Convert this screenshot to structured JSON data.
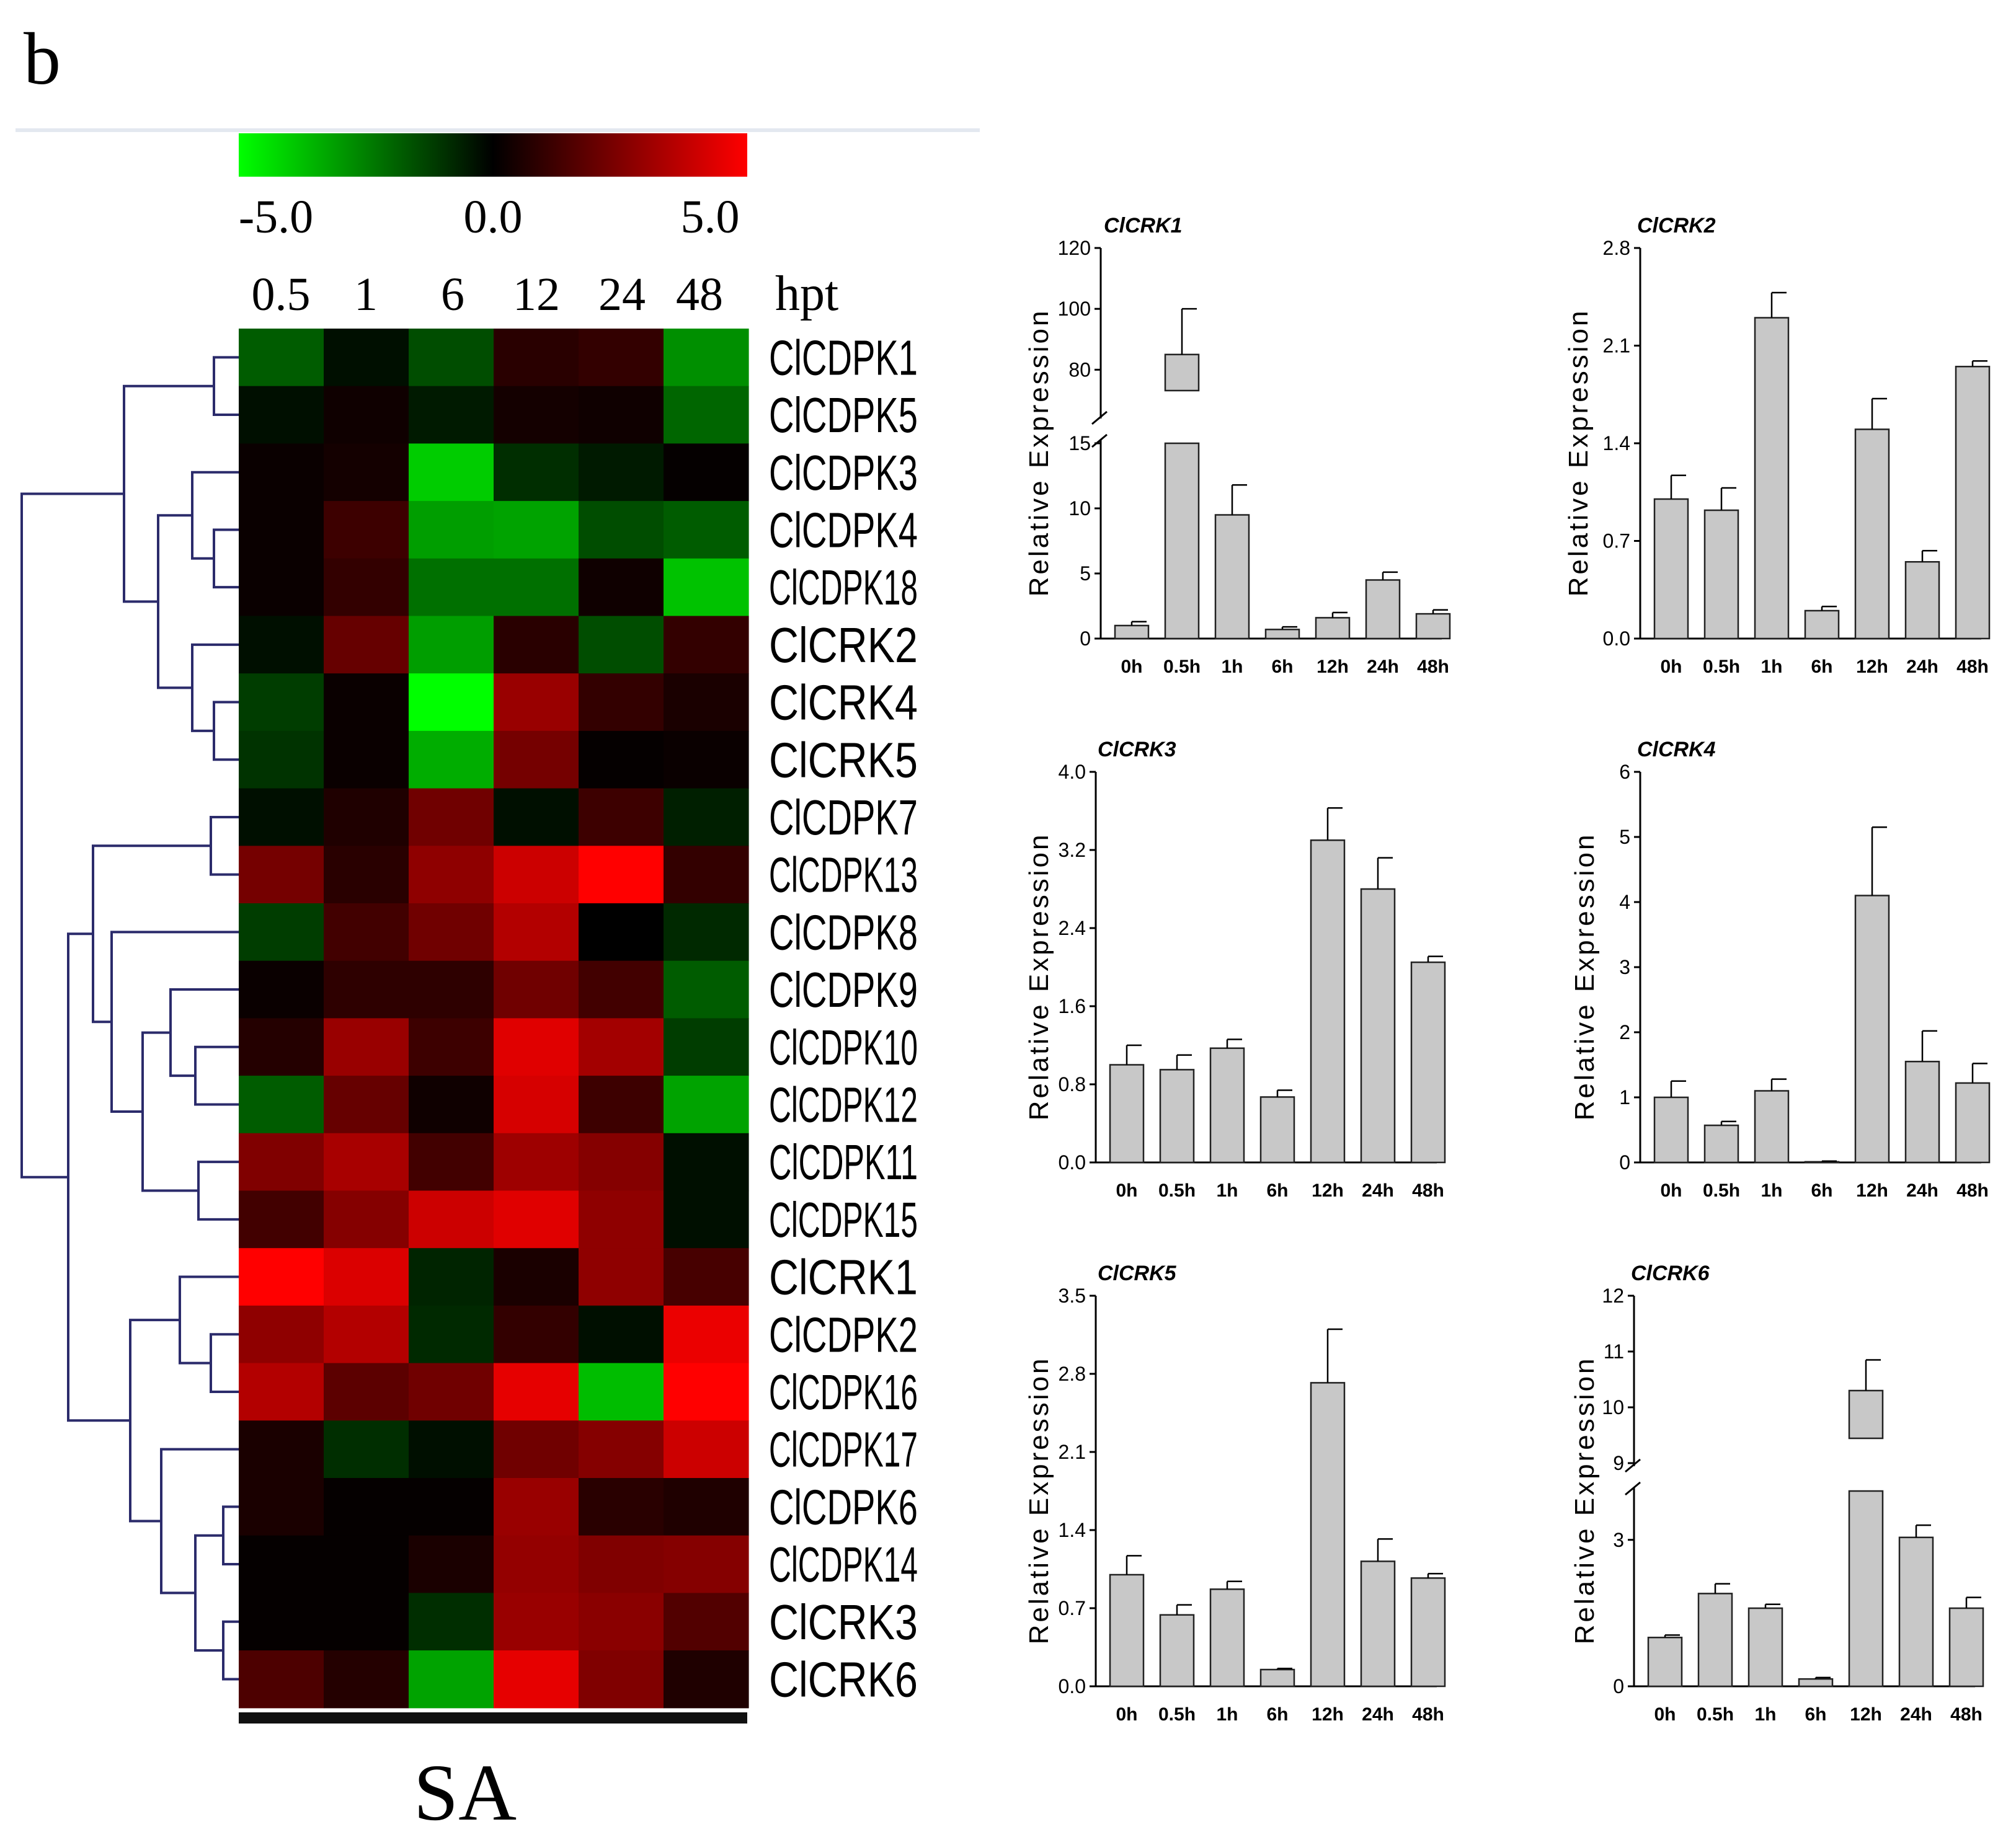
{
  "panel_label": "b",
  "colors": {
    "low": "#00ff00",
    "mid": "#000000",
    "high": "#ff0000",
    "bar_fill": "#c8c8c8",
    "bar_stroke": "#222222",
    "dendrogram": "#2b2b6b"
  },
  "heatmap": {
    "scale_labels": [
      "-5.0",
      "0.0",
      "5.0"
    ],
    "time_points": [
      "0.5",
      "1",
      "6",
      "12",
      "24",
      "48"
    ],
    "time_unit": "hpt",
    "treatment": "SA"
  },
  "chart_data": [
    {
      "type": "heatmap",
      "color_range": [
        -5.0,
        5.0
      ],
      "x": [
        "0.5",
        "1",
        "6",
        "12",
        "24",
        "48"
      ],
      "xlabel": "hpt",
      "treatment": "SA",
      "rows": [
        "ClCDPK1",
        "ClCDPK5",
        "ClCDPK3",
        "ClCDPK4",
        "ClCDPK18",
        "ClCRK2",
        "ClCRK4",
        "ClCRK5",
        "ClCDPK7",
        "ClCDPK13",
        "ClCDPK8",
        "ClCDPK9",
        "ClCDPK10",
        "ClCDPK12",
        "ClCDPK11",
        "ClCDPK15",
        "ClCRK1",
        "ClCDPK2",
        "ClCDPK16",
        "ClCDPK17",
        "ClCDPK6",
        "ClCDPK14",
        "ClCRK3",
        "ClCRK6"
      ],
      "values": [
        [
          -1.8,
          -0.3,
          -1.5,
          0.8,
          1.0,
          -2.8
        ],
        [
          -0.3,
          0.3,
          -0.5,
          0.4,
          0.3,
          -2.0
        ],
        [
          0.2,
          0.4,
          -4.0,
          -0.9,
          -0.5,
          0.1
        ],
        [
          0.2,
          1.2,
          -3.1,
          -3.2,
          -1.5,
          -1.8
        ],
        [
          0.2,
          1.0,
          -2.2,
          -2.2,
          0.3,
          -3.8
        ],
        [
          -0.3,
          2.0,
          -3.1,
          0.8,
          -1.5,
          1.0
        ],
        [
          -1.2,
          0.2,
          -5.0,
          3.0,
          1.0,
          0.5
        ],
        [
          -1.0,
          0.2,
          -3.4,
          2.3,
          0.1,
          0.2
        ],
        [
          -0.3,
          0.6,
          2.2,
          -0.3,
          1.2,
          -0.6
        ],
        [
          2.3,
          0.8,
          2.8,
          4.0,
          5.0,
          1.0
        ],
        [
          -1.2,
          1.3,
          2.2,
          3.5,
          0.0,
          -0.8
        ],
        [
          0.2,
          0.9,
          0.9,
          2.2,
          1.3,
          -1.8
        ],
        [
          0.7,
          3.0,
          1.2,
          4.4,
          3.2,
          -1.2
        ],
        [
          -1.8,
          2.0,
          0.3,
          4.2,
          1.2,
          -3.2
        ],
        [
          2.5,
          3.3,
          1.3,
          3.1,
          2.6,
          -0.3
        ],
        [
          1.3,
          2.6,
          4.0,
          4.4,
          2.8,
          -0.3
        ],
        [
          5.0,
          4.3,
          -0.7,
          0.5,
          2.8,
          1.4
        ],
        [
          2.8,
          3.5,
          -0.8,
          1.0,
          -0.3,
          4.6
        ],
        [
          3.5,
          1.8,
          2.2,
          4.5,
          -3.7,
          5.0
        ],
        [
          0.5,
          -0.9,
          -0.3,
          2.2,
          2.6,
          4.0
        ],
        [
          0.5,
          0.1,
          0.1,
          3.0,
          0.8,
          0.6
        ],
        [
          0.1,
          0.1,
          0.5,
          2.9,
          2.5,
          2.6
        ],
        [
          0.1,
          0.1,
          -0.9,
          3.0,
          2.7,
          1.6
        ],
        [
          1.5,
          0.7,
          -3.2,
          4.5,
          2.5,
          0.6
        ]
      ]
    },
    {
      "type": "bar",
      "title": "ClCRK1",
      "ylabel": "Relative Expression",
      "categories": [
        "0h",
        "0.5h",
        "1h",
        "6h",
        "12h",
        "24h",
        "48h"
      ],
      "values": [
        1.0,
        85.0,
        9.5,
        0.7,
        1.6,
        4.5,
        1.9
      ],
      "errors": [
        0.3,
        15.0,
        2.3,
        0.2,
        0.4,
        0.6,
        0.3
      ],
      "axis_break": {
        "lower": [
          0,
          15
        ],
        "upper": [
          65,
          120
        ]
      },
      "yticks": [
        0,
        5,
        10,
        15,
        80,
        100,
        120
      ]
    },
    {
      "type": "bar",
      "title": "ClCRK2",
      "ylabel": "Relative Expression",
      "categories": [
        "0h",
        "0.5h",
        "1h",
        "6h",
        "12h",
        "24h",
        "48h"
      ],
      "values": [
        1.0,
        0.92,
        2.3,
        0.2,
        1.5,
        0.55,
        1.95
      ],
      "errors": [
        0.17,
        0.16,
        0.18,
        0.03,
        0.22,
        0.08,
        0.04
      ],
      "ylim": [
        0,
        2.8
      ],
      "yticks": [
        0.0,
        0.7,
        1.4,
        2.1,
        2.8
      ]
    },
    {
      "type": "bar",
      "title": "ClCRK3",
      "ylabel": "Relative Expression",
      "categories": [
        "0h",
        "0.5h",
        "1h",
        "6h",
        "12h",
        "24h",
        "48h"
      ],
      "values": [
        1.0,
        0.95,
        1.17,
        0.67,
        3.3,
        2.8,
        2.05
      ],
      "errors": [
        0.2,
        0.15,
        0.09,
        0.07,
        0.33,
        0.32,
        0.06
      ],
      "ylim": [
        0,
        4.0
      ],
      "yticks": [
        0.0,
        0.8,
        1.6,
        2.4,
        3.2,
        4.0
      ]
    },
    {
      "type": "bar",
      "title": "ClCRK4",
      "ylabel": "Relative Expression",
      "categories": [
        "0h",
        "0.5h",
        "1h",
        "6h",
        "12h",
        "24h",
        "48h"
      ],
      "values": [
        1.0,
        0.57,
        1.1,
        0.01,
        4.1,
        1.55,
        1.22
      ],
      "errors": [
        0.25,
        0.06,
        0.18,
        0.01,
        1.05,
        0.47,
        0.3
      ],
      "ylim": [
        0,
        6
      ],
      "yticks": [
        0,
        1,
        2,
        3,
        4,
        5,
        6
      ]
    },
    {
      "type": "bar",
      "title": "ClCRK5",
      "ylabel": "Relative Expression",
      "categories": [
        "0h",
        "0.5h",
        "1h",
        "6h",
        "12h",
        "24h",
        "48h"
      ],
      "values": [
        1.0,
        0.64,
        0.87,
        0.15,
        2.72,
        1.12,
        0.97
      ],
      "errors": [
        0.17,
        0.09,
        0.07,
        0.01,
        0.48,
        0.2,
        0.04
      ],
      "ylim": [
        0,
        3.5
      ],
      "yticks": [
        0.0,
        0.7,
        1.4,
        2.1,
        2.8,
        3.5
      ]
    },
    {
      "type": "bar",
      "title": "ClCRK6",
      "ylabel": "Relative Expression",
      "categories": [
        "0h",
        "0.5h",
        "1h",
        "6h",
        "12h",
        "24h",
        "48h"
      ],
      "values": [
        1.0,
        1.9,
        1.6,
        0.15,
        10.3,
        3.05,
        1.6
      ],
      "errors": [
        0.05,
        0.2,
        0.08,
        0.03,
        0.55,
        0.25,
        0.22
      ],
      "axis_break": {
        "lower": [
          0,
          4
        ],
        "upper": [
          9,
          12
        ]
      },
      "yticks": [
        0,
        3,
        9,
        10,
        11,
        12
      ]
    }
  ]
}
